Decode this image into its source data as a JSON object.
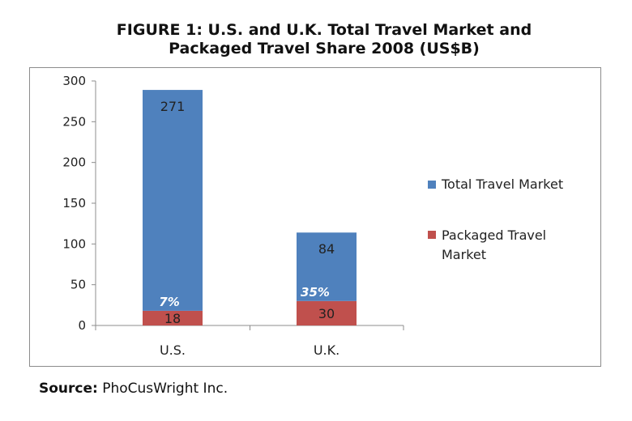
{
  "title_line1": "FIGURE 1: U.S. and U.K. Total Travel Market and",
  "title_line2": "Packaged Travel Share 2008 (US$B)",
  "source_label": "Source:",
  "source_text": "PhoCusWright Inc.",
  "chart_data": {
    "type": "bar",
    "stacked": true,
    "categories": [
      "U.S.",
      "U.K."
    ],
    "ylim": [
      0,
      300
    ],
    "yticks": [
      0,
      50,
      100,
      150,
      200,
      250,
      300
    ],
    "grid": false,
    "legend_position": "right",
    "series": [
      {
        "name": "Packaged Travel Market",
        "values": [
          18,
          30
        ],
        "color": "#c0504d"
      },
      {
        "name": "Total Travel Market",
        "values": [
          271,
          84
        ],
        "color": "#4f81bd"
      }
    ],
    "data_labels": {
      "Packaged Travel Market": [
        "18",
        "30"
      ],
      "Total Travel Market": [
        "271",
        "84"
      ]
    },
    "share_labels": [
      "7%",
      "35%"
    ]
  }
}
